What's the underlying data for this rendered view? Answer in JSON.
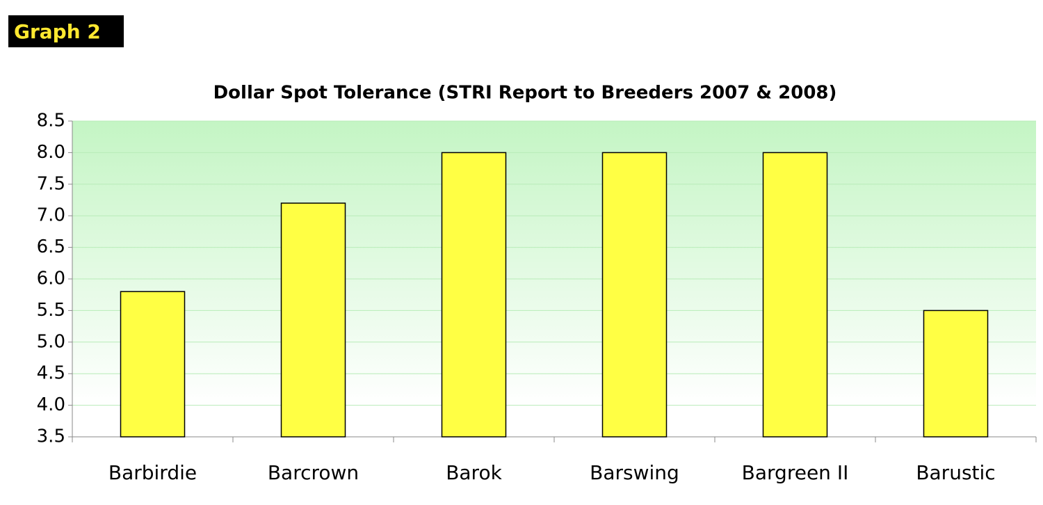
{
  "badge": "Graph 2",
  "chart_data": {
    "type": "bar",
    "title": "Dollar Spot Tolerance (STRI Report to Breeders 2007 & 2008)",
    "categories": [
      "Barbirdie",
      "Barcrown",
      "Barok",
      "Barswing",
      "Bargreen II",
      "Barustic"
    ],
    "values": [
      5.8,
      7.2,
      8.0,
      8.0,
      8.0,
      5.5
    ],
    "color": "#ffff44",
    "ylim": [
      3.5,
      8.5
    ],
    "yticks": [
      3.5,
      {
        "value": 4,
        "label": "4.0"
      },
      4.5,
      {
        "value": 5,
        "label": "5.0"
      },
      5.5,
      {
        "value": 6,
        "label": "6.0"
      },
      6.5,
      {
        "value": 7,
        "label": "7.0"
      },
      7.5,
      {
        "value": 8,
        "label": "8.0"
      },
      8.5
    ],
    "grid": true
  }
}
